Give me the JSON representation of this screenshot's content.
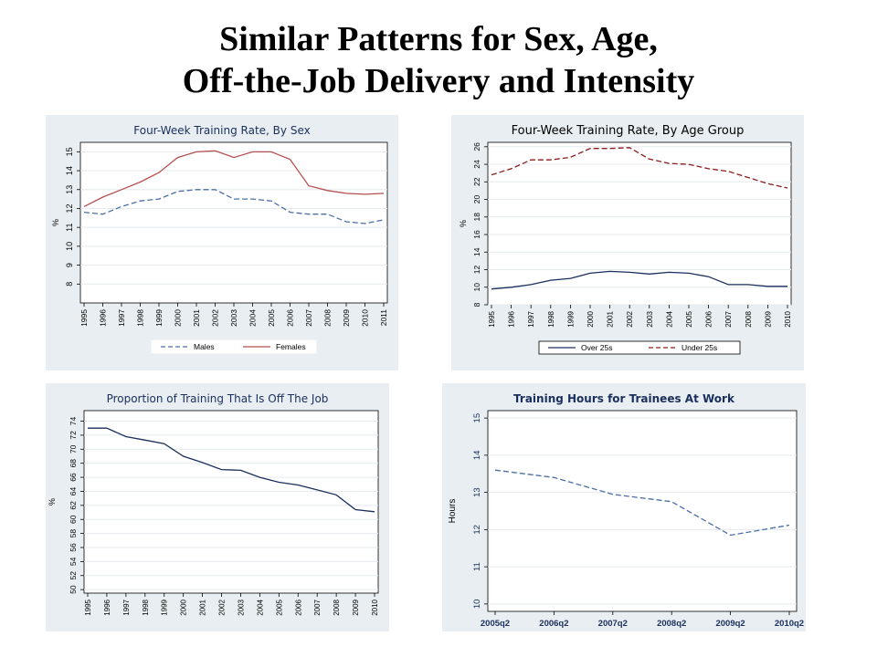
{
  "slide": {
    "title_line1": "Similar Patterns for Sex, Age,",
    "title_line2": "Off-the-Job Delivery and Intensity"
  },
  "chart_data": [
    {
      "type": "line",
      "title": "Four-Week Training Rate, By Sex",
      "ylabel": "%",
      "xlabel": "",
      "x": [
        "1995",
        "1996",
        "1997",
        "1998",
        "1999",
        "2000",
        "2001",
        "2002",
        "2003",
        "2004",
        "2005",
        "2006",
        "2007",
        "2008",
        "2009",
        "2010",
        "2011"
      ],
      "ylim": [
        7,
        15.5
      ],
      "yticks": [
        8,
        9,
        10,
        11,
        12,
        13,
        14,
        15
      ],
      "grid": true,
      "legend": "bottom",
      "series": [
        {
          "name": "Males",
          "color": "#4a6fa5",
          "dash": "dashed",
          "values": [
            11.8,
            11.7,
            12.1,
            12.4,
            12.5,
            12.9,
            13.0,
            13.0,
            12.5,
            12.5,
            12.4,
            11.8,
            11.7,
            11.7,
            11.3,
            11.2,
            11.4
          ]
        },
        {
          "name": "Females",
          "color": "#b5504e",
          "dash": "solid",
          "values": [
            12.1,
            12.6,
            13.0,
            13.4,
            13.9,
            14.7,
            15.0,
            15.05,
            14.7,
            15.0,
            15.0,
            14.6,
            13.2,
            12.95,
            12.8,
            12.75,
            12.8
          ]
        }
      ]
    },
    {
      "type": "line",
      "title": "Four-Week Training Rate, By Age Group",
      "ylabel": "%",
      "xlabel": "",
      "x": [
        "1995",
        "1996",
        "1997",
        "1998",
        "1999",
        "2000",
        "2001",
        "2002",
        "2003",
        "2004",
        "2005",
        "2006",
        "2007",
        "2008",
        "2009",
        "2010"
      ],
      "ylim": [
        8,
        26.5
      ],
      "yticks": [
        8,
        10,
        12,
        14,
        16,
        18,
        20,
        22,
        24,
        26
      ],
      "grid": true,
      "legend": "bottom",
      "series": [
        {
          "name": "Over 25s",
          "color": "#1a2f5c",
          "dash": "solid",
          "values": [
            9.8,
            10.0,
            10.3,
            10.8,
            11.0,
            11.6,
            11.8,
            11.7,
            11.5,
            11.7,
            11.6,
            11.2,
            10.3,
            10.3,
            10.1,
            10.1
          ]
        },
        {
          "name": "Under 25s",
          "color": "#8b1a1a",
          "dash": "dashed",
          "values": [
            22.8,
            23.5,
            24.5,
            24.5,
            24.8,
            25.8,
            25.8,
            25.9,
            24.6,
            24.1,
            24.0,
            23.5,
            23.2,
            22.5,
            21.8,
            21.3
          ]
        }
      ]
    },
    {
      "type": "line",
      "title": "Proportion of Training That Is Off The Job",
      "ylabel": "%",
      "xlabel": "",
      "x": [
        "1995",
        "1996",
        "1997",
        "1998",
        "1999",
        "2000",
        "2001",
        "2002",
        "2003",
        "2004",
        "2005",
        "2006",
        "2007",
        "2008",
        "2009",
        "2010"
      ],
      "ylim": [
        49.5,
        75.5
      ],
      "yticks": [
        50,
        52,
        54,
        56,
        58,
        60,
        62,
        64,
        66,
        68,
        70,
        72,
        74
      ],
      "grid": true,
      "legend": "none",
      "series": [
        {
          "name": "",
          "color": "#1a2f5c",
          "dash": "solid",
          "values": [
            73.0,
            73.0,
            71.8,
            71.3,
            70.8,
            69.0,
            68.1,
            67.1,
            67.0,
            66.0,
            65.3,
            64.9,
            64.2,
            63.5,
            61.4,
            61.1
          ]
        }
      ]
    },
    {
      "type": "line",
      "title": "Training Hours for Trainees At Work",
      "ylabel": "Hours",
      "xlabel": "",
      "x": [
        "2005q2",
        "2006q2",
        "2007q2",
        "2008q2",
        "2009q2",
        "2010q2"
      ],
      "ylim": [
        9.8,
        15.2
      ],
      "yticks": [
        10,
        11,
        12,
        13,
        14,
        15
      ],
      "grid": true,
      "legend": "none",
      "series": [
        {
          "name": "",
          "color": "#4a6fa5",
          "dash": "dashed",
          "values": [
            13.6,
            13.4,
            12.95,
            12.75,
            11.85,
            12.12
          ]
        }
      ]
    }
  ]
}
